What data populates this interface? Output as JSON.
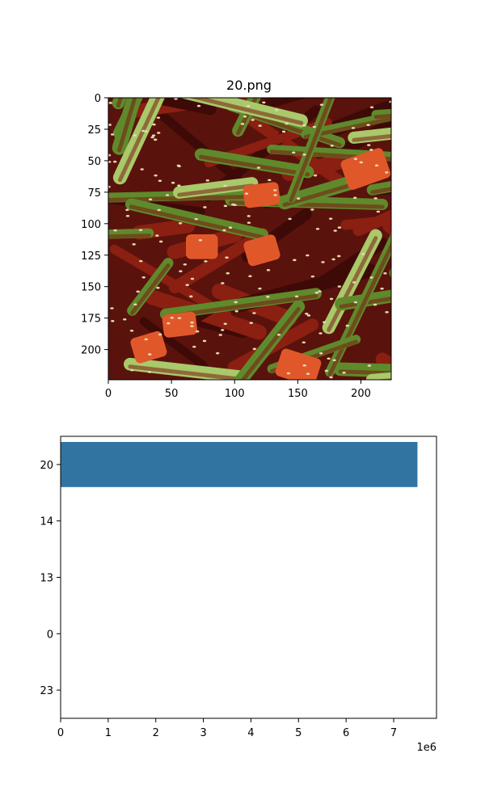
{
  "figure": {
    "image_panel": {
      "title": "20.png",
      "x_ticks": [
        0,
        50,
        100,
        150,
        200
      ],
      "y_ticks": [
        0,
        25,
        50,
        75,
        100,
        125,
        150,
        175,
        200
      ],
      "extent": [
        0,
        224
      ],
      "image_description_icon": "food-photo-image",
      "colors": {
        "sauce": "#6b140e",
        "green": "#5f8a2c",
        "light_green": "#a9c96a",
        "radish": "#e0582a",
        "sesame": "#e8d9b0"
      }
    }
  },
  "chart_data": {
    "type": "bar",
    "orientation": "horizontal",
    "categories": [
      "20",
      "14",
      "13",
      "0",
      "23"
    ],
    "values": [
      7500000,
      0,
      0,
      0,
      0
    ],
    "xlim": [
      0,
      7900000
    ],
    "x_ticks": [
      0,
      1,
      2,
      3,
      4,
      5,
      6,
      7
    ],
    "x_offset_label": "1e6",
    "bar_color": "#3274a1",
    "title": "",
    "xlabel": "",
    "ylabel": ""
  }
}
